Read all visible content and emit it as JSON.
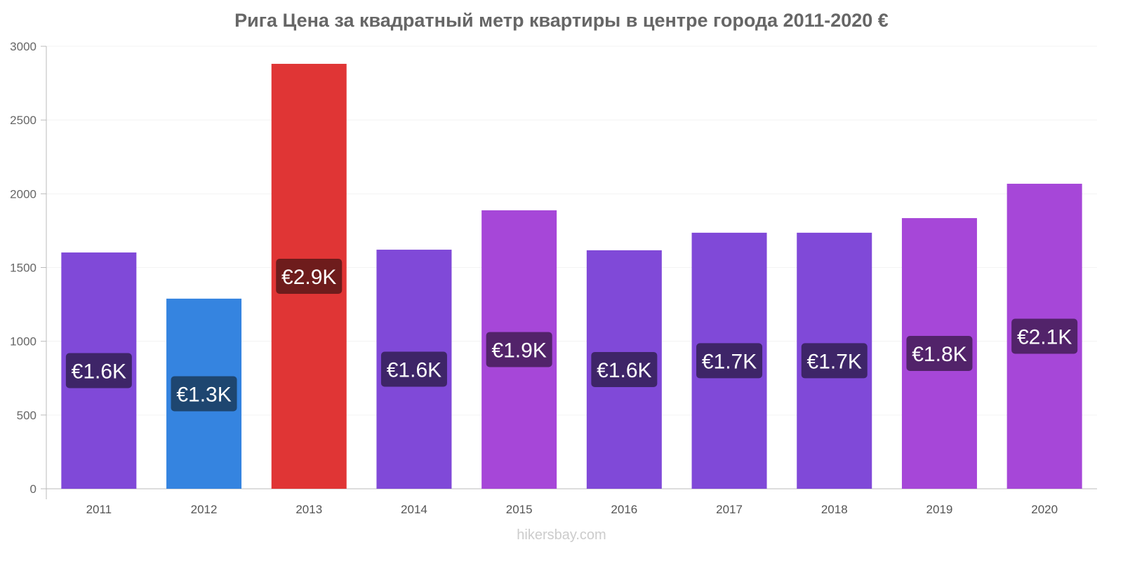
{
  "chart_data": {
    "type": "bar",
    "title": "Рига Цена за квадратный метр квартиры в центре города 2011-2020 €",
    "categories": [
      "2011",
      "2012",
      "2013",
      "2014",
      "2015",
      "2016",
      "2017",
      "2018",
      "2019",
      "2020"
    ],
    "values": [
      1602,
      1289,
      2881,
      1621,
      1888,
      1617,
      1736,
      1736,
      1835,
      2068
    ],
    "data_labels": [
      "€1.6K",
      "€1.3K",
      "€2.9K",
      "€1.6K",
      "€1.9K",
      "€1.6K",
      "€1.7K",
      "€1.7K",
      "€1.8K",
      "€2.1K"
    ],
    "colors": [
      "#8049d8",
      "#3584e0",
      "#e03535",
      "#8049d8",
      "#a647d8",
      "#8049d8",
      "#8049d8",
      "#8049d8",
      "#a647d8",
      "#a647d8"
    ],
    "label_colors": [
      "#3e2568",
      "#1e4670",
      "#6e1c1c",
      "#3e2568",
      "#52236a",
      "#3e2568",
      "#3e2568",
      "#3e2568",
      "#52236a",
      "#52236a"
    ],
    "yticks": [
      0,
      500,
      1000,
      1500,
      2000,
      2500,
      3000
    ],
    "ylim": [
      0,
      3000
    ],
    "xlabel": "",
    "ylabel": "",
    "grid": true
  },
  "footer": "hikersbay.com"
}
